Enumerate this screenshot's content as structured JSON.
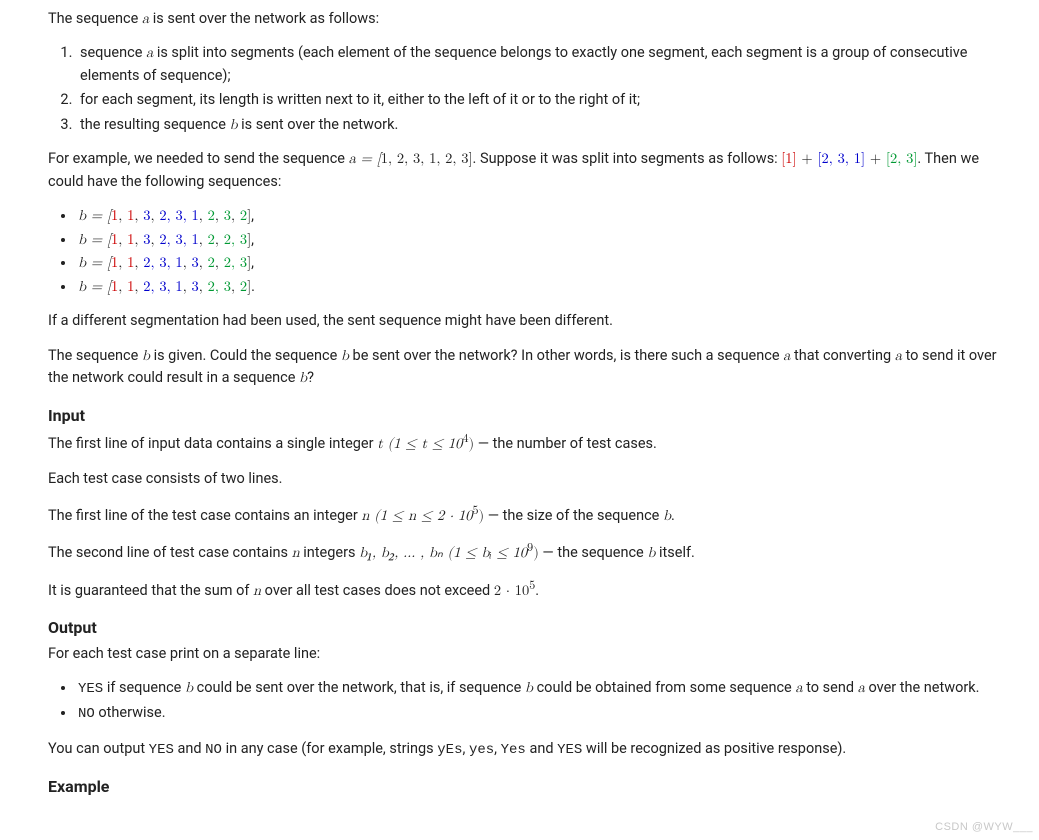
{
  "intro": "The sequence ",
  "intro2": " is sent over the network as follows:",
  "ol": {
    "i1a": "sequence ",
    "i1b": " is split into segments (each element of the sequence belongs to exactly one segment, each segment is a group of consecutive elements of sequence);",
    "i2": "for each segment, its length is written next to it, either to the left of it or to the right of it;",
    "i3a": "the resulting sequence ",
    "i3b": " is sent over the network."
  },
  "ex1a": "For example, we needed to send the sequence ",
  "ex1b": ". Suppose it was split into segments as follows: ",
  "ex1c": ". Then we could have the following sequences:",
  "seq_parts": {
    "seg1": "[1]",
    "plus": " + ",
    "seg2": "[2, 3, 1]",
    "seg3": "[2, 3]"
  },
  "aSeq": {
    "pre": "a = [",
    "v": "1, 2, 3, 1, 2, 3",
    "post": "]"
  },
  "bPrefix": "b = [",
  "bSuffix": "]",
  "comma": ",",
  "dot": ".",
  "bLines": [
    {
      "parts": [
        {
          "t": "1",
          "c": "red"
        },
        {
          "t": ", "
        },
        {
          "t": "1",
          "c": "red"
        },
        {
          "t": ", "
        },
        {
          "t": "3",
          "c": "blue"
        },
        {
          "t": ", "
        },
        {
          "t": "2, 3, 1",
          "c": "blue"
        },
        {
          "t": ", "
        },
        {
          "t": "2",
          "c": "green"
        },
        {
          "t": ", "
        },
        {
          "t": "3",
          "c": "green"
        },
        {
          "t": ", "
        },
        {
          "t": "2",
          "c": "green"
        }
      ]
    },
    {
      "parts": [
        {
          "t": "1",
          "c": "red"
        },
        {
          "t": ", "
        },
        {
          "t": "1",
          "c": "red"
        },
        {
          "t": ", "
        },
        {
          "t": "3",
          "c": "blue"
        },
        {
          "t": ", "
        },
        {
          "t": "2, 3, 1",
          "c": "blue"
        },
        {
          "t": ", "
        },
        {
          "t": "2",
          "c": "green"
        },
        {
          "t": ", "
        },
        {
          "t": "2, 3",
          "c": "green"
        }
      ]
    },
    {
      "parts": [
        {
          "t": "1",
          "c": "red"
        },
        {
          "t": ", "
        },
        {
          "t": "1",
          "c": "red"
        },
        {
          "t": ", "
        },
        {
          "t": "2, 3, 1",
          "c": "blue"
        },
        {
          "t": ", "
        },
        {
          "t": "3",
          "c": "blue"
        },
        {
          "t": ", "
        },
        {
          "t": "2",
          "c": "green"
        },
        {
          "t": ", "
        },
        {
          "t": "2, 3",
          "c": "green"
        }
      ]
    },
    {
      "parts": [
        {
          "t": "1",
          "c": "red"
        },
        {
          "t": ", "
        },
        {
          "t": "1",
          "c": "red"
        },
        {
          "t": ", "
        },
        {
          "t": "2, 3, 1",
          "c": "blue"
        },
        {
          "t": ", "
        },
        {
          "t": "3",
          "c": "blue"
        },
        {
          "t": ", "
        },
        {
          "t": "2, 3",
          "c": "green"
        },
        {
          "t": ", "
        },
        {
          "t": "2",
          "c": "green"
        }
      ]
    }
  ],
  "afterB": "If a different segmentation had been used, the sent sequence might have been different.",
  "q1": "The sequence ",
  "q2": " is given. Could the sequence ",
  "q3": " be sent over the network? In other words, is there such a sequence ",
  "q4": " that converting ",
  "q5": " to send it over the network could result in a sequence ",
  "q6": "?",
  "inputH": "Input",
  "in1a": "The first line of input data contains a single integer ",
  "in1b": " — the number of test cases.",
  "in_t": "t (1 ≤ t ≤ 10",
  "in_t_sup": "4",
  "in_t_close": ")",
  "in2": "Each test case consists of two lines.",
  "in3a": "The first line of the test case contains an integer ",
  "in3b": " — the size of the sequence ",
  "in3c": ".",
  "in_n": "n (1 ≤ n ≤ 2 · 10",
  "in_n_sup": "5",
  "in_n_close": ")",
  "in4a": "The second line of test case contains ",
  "in4b": " integers ",
  "in4c": " — the sequence ",
  "in4d": " itself.",
  "in_b": "b₁, b₂, … , bₙ (1 ≤ bᵢ ≤ 10",
  "in_b_sup": "9",
  "in_b_close": ")",
  "in5a": "It is guaranteed that the sum of ",
  "in5b": " over all test cases does not exceed ",
  "in5c": ".",
  "in_sum": "2 · 10",
  "in_sum_sup": "5",
  "outputH": "Output",
  "out1": "For each test case print on a separate line:",
  "outYes1": " if sequence ",
  "outYes2": " could be sent over the network, that is, if sequence ",
  "outYes3": " could be obtained from some sequence ",
  "outYes4": " to send ",
  "outYes5": " over the network.",
  "outNo": " otherwise.",
  "out2a": "You can output ",
  "out2b": " and ",
  "out2c": " in any case (for example, strings ",
  "out2d": ", ",
  "out2e": ", ",
  "out2f": " and ",
  "out2g": " will be recognized as positive response).",
  "yes": "YES",
  "no": "NO",
  "yEs": "yEs",
  "yes2": "yes",
  "Yes": "Yes",
  "exampleH": "Example",
  "var_a": "a",
  "var_b": "b",
  "var_n": "n",
  "watermark": "CSDN @WYW___"
}
